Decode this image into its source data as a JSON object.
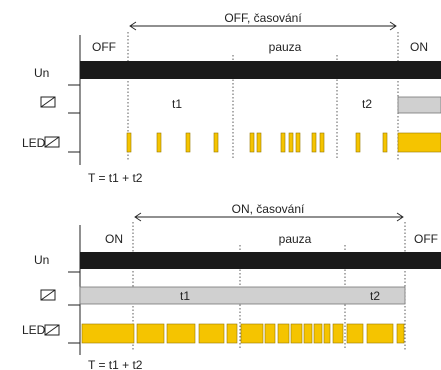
{
  "colors": {
    "supply": "#1a1a1a",
    "relay_fill": "#d0d0d0",
    "relay_stroke": "#777777",
    "led": "#f5c400",
    "led_stroke": "#9a7a00"
  },
  "icons": {
    "relay": "relay-contact-icon"
  },
  "diagrams": [
    {
      "title": "OFF, časování",
      "phase_left": "OFF",
      "phase_mid": "pauza",
      "phase_right": "ON",
      "row_un": "Un",
      "row_led": "LED",
      "interval_1": "t1",
      "interval_2": "t2",
      "formula": "T = t1 + t2"
    },
    {
      "title": "ON, časování",
      "phase_left": "ON",
      "phase_mid": "pauza",
      "phase_right": "OFF",
      "row_un": "Un",
      "row_led": "LED",
      "interval_1": "t1",
      "interval_2": "t2",
      "formula": "T = t1 + t2"
    }
  ]
}
